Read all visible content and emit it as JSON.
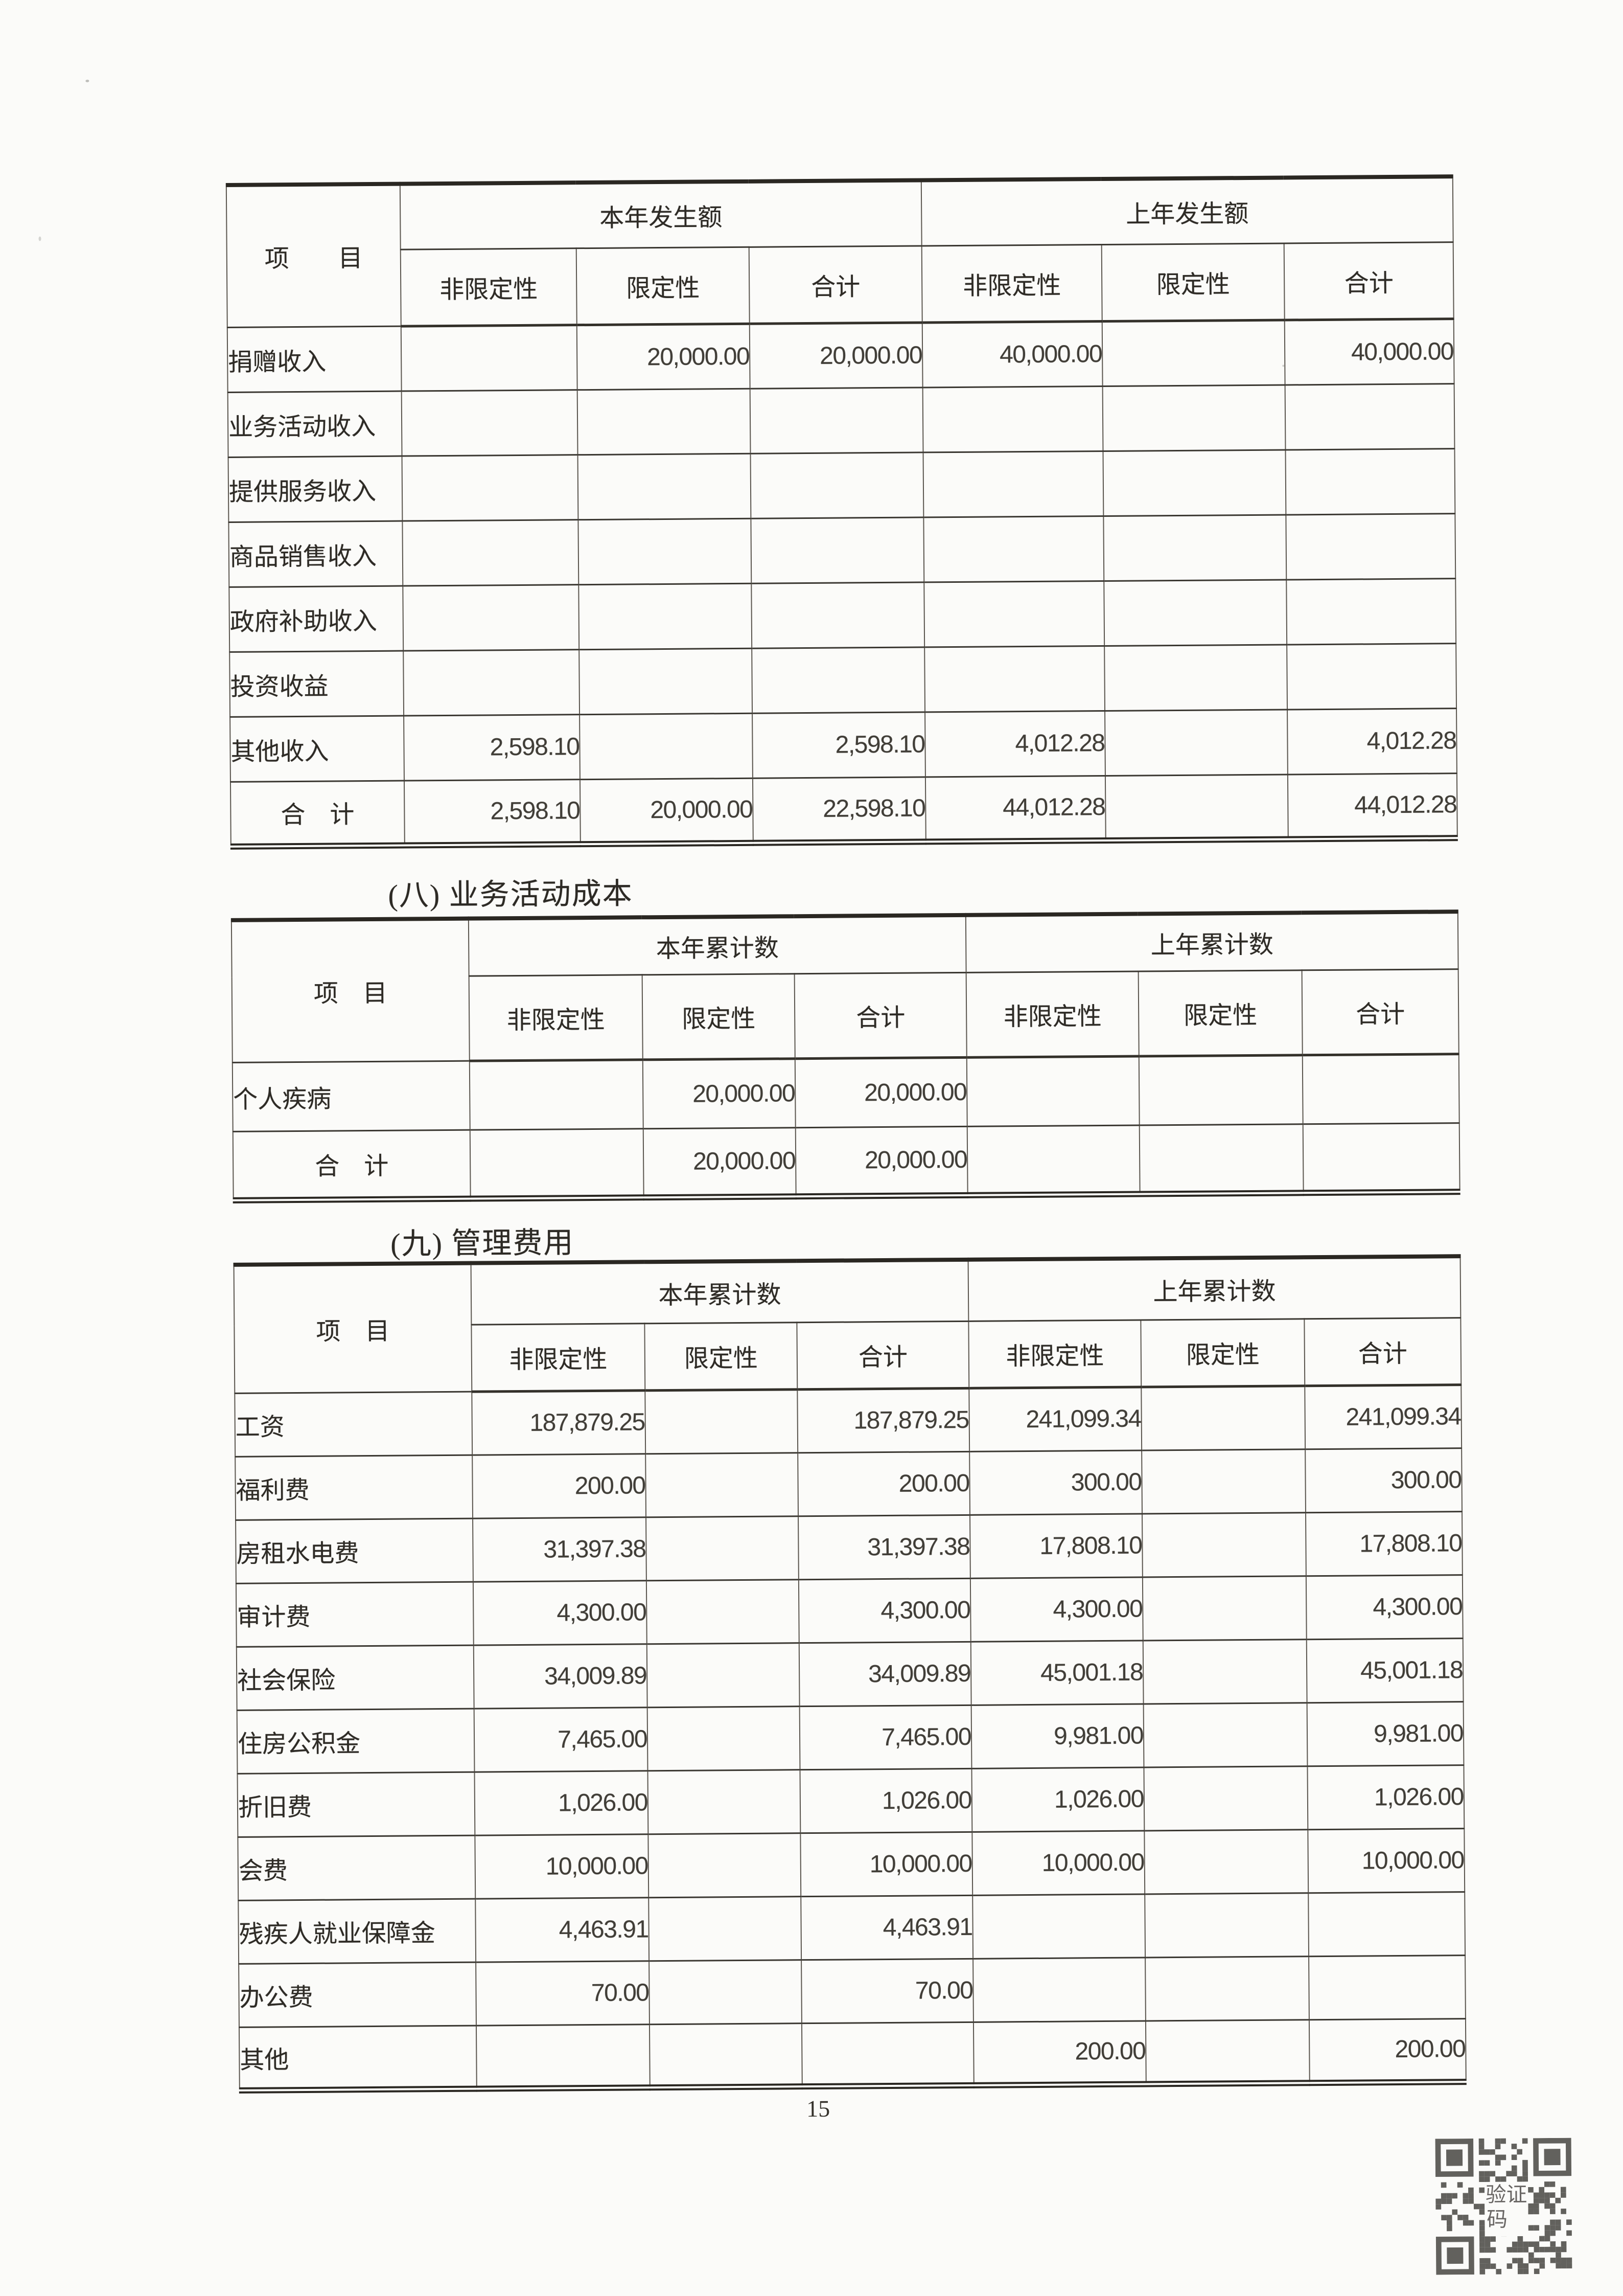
{
  "page": {
    "number": "15"
  },
  "colors": {
    "ink": "#2d2b27",
    "line": "#3a3731",
    "paper": "#fbfbf9"
  },
  "qr": {
    "name": "verification-qr-code",
    "label_line1": "验证",
    "label_line2": "码"
  },
  "tables": [
    {
      "heading": "",
      "item_header": "项　　目",
      "group_headers": [
        "本年发生额",
        "上年发生额"
      ],
      "sub_headers": [
        "非限定性",
        "限定性",
        "合计",
        "非限定性",
        "限定性",
        "合计"
      ],
      "rows": [
        {
          "label": "捐赠收入",
          "total": false,
          "values": [
            "",
            "20,000.00",
            "20,000.00",
            "40,000.00",
            "",
            "40,000.00"
          ]
        },
        {
          "label": "业务活动收入",
          "total": false,
          "values": [
            "",
            "",
            "",
            "",
            "",
            ""
          ]
        },
        {
          "label": "提供服务收入",
          "total": false,
          "values": [
            "",
            "",
            "",
            "",
            "",
            ""
          ]
        },
        {
          "label": "商品销售收入",
          "total": false,
          "values": [
            "",
            "",
            "",
            "",
            "",
            ""
          ]
        },
        {
          "label": "政府补助收入",
          "total": false,
          "values": [
            "",
            "",
            "",
            "",
            "",
            ""
          ]
        },
        {
          "label": "投资收益",
          "total": false,
          "values": [
            "",
            "",
            "",
            "",
            "",
            ""
          ]
        },
        {
          "label": "其他收入",
          "total": false,
          "values": [
            "2,598.10",
            "",
            "2,598.10",
            "4,012.28",
            "",
            "4,012.28"
          ]
        },
        {
          "label": "合　计",
          "total": true,
          "values": [
            "2,598.10",
            "20,000.00",
            "22,598.10",
            "44,012.28",
            "",
            "44,012.28"
          ]
        }
      ]
    },
    {
      "heading": "(八) 业务活动成本",
      "item_header": "项　目",
      "group_headers": [
        "本年累计数",
        "上年累计数"
      ],
      "sub_headers": [
        "非限定性",
        "限定性",
        "合计",
        "非限定性",
        "限定性",
        "合计"
      ],
      "rows": [
        {
          "label": "个人疾病",
          "total": false,
          "values": [
            "",
            "20,000.00",
            "20,000.00",
            "",
            "",
            ""
          ]
        },
        {
          "label": "合　计",
          "total": true,
          "values": [
            "",
            "20,000.00",
            "20,000.00",
            "",
            "",
            ""
          ]
        }
      ]
    },
    {
      "heading": "(九) 管理费用",
      "item_header": "项　目",
      "group_headers": [
        "本年累计数",
        "上年累计数"
      ],
      "sub_headers": [
        "非限定性",
        "限定性",
        "合计",
        "非限定性",
        "限定性",
        "合计"
      ],
      "rows": [
        {
          "label": "工资",
          "total": false,
          "values": [
            "187,879.25",
            "",
            "187,879.25",
            "241,099.34",
            "",
            "241,099.34"
          ]
        },
        {
          "label": "福利费",
          "total": false,
          "values": [
            "200.00",
            "",
            "200.00",
            "300.00",
            "",
            "300.00"
          ]
        },
        {
          "label": "房租水电费",
          "total": false,
          "values": [
            "31,397.38",
            "",
            "31,397.38",
            "17,808.10",
            "",
            "17,808.10"
          ]
        },
        {
          "label": "审计费",
          "total": false,
          "values": [
            "4,300.00",
            "",
            "4,300.00",
            "4,300.00",
            "",
            "4,300.00"
          ]
        },
        {
          "label": "社会保险",
          "total": false,
          "values": [
            "34,009.89",
            "",
            "34,009.89",
            "45,001.18",
            "",
            "45,001.18"
          ]
        },
        {
          "label": "住房公积金",
          "total": false,
          "values": [
            "7,465.00",
            "",
            "7,465.00",
            "9,981.00",
            "",
            "9,981.00"
          ]
        },
        {
          "label": "折旧费",
          "total": false,
          "values": [
            "1,026.00",
            "",
            "1,026.00",
            "1,026.00",
            "",
            "1,026.00"
          ]
        },
        {
          "label": "会费",
          "total": false,
          "values": [
            "10,000.00",
            "",
            "10,000.00",
            "10,000.00",
            "",
            "10,000.00"
          ]
        },
        {
          "label": "残疾人就业保障金",
          "total": false,
          "values": [
            "4,463.91",
            "",
            "4,463.91",
            "",
            "",
            ""
          ]
        },
        {
          "label": "办公费",
          "total": false,
          "values": [
            "70.00",
            "",
            "70.00",
            "",
            "",
            ""
          ]
        },
        {
          "label": "其他",
          "total": false,
          "values": [
            "",
            "",
            "",
            "200.00",
            "",
            "200.00"
          ]
        }
      ]
    }
  ]
}
